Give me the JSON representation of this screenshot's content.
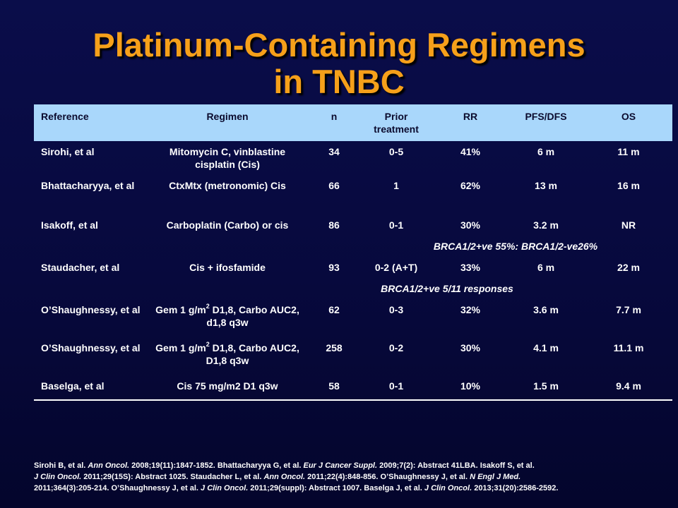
{
  "title": {
    "line1": "Platinum-Containing Regimens",
    "line2": "in TNBC"
  },
  "table": {
    "headers": {
      "reference": "Reference",
      "regimen": "Regimen",
      "n": "n",
      "prior": "Prior treatment",
      "rr": "RR",
      "pfs": "PFS/DFS",
      "os": "OS"
    },
    "rows": [
      {
        "reference": "Sirohi, et al",
        "regimen": "Mitomycin C, vinblastine cisplatin (Cis)",
        "n": "34",
        "prior": "0-5",
        "rr": "41%",
        "pfs": "6 m",
        "os": "11 m"
      },
      {
        "reference": "Bhattacharyya, et al",
        "regimen": "CtxMtx (metronomic) Cis",
        "n": "66",
        "prior": "1",
        "rr": "62%",
        "pfs": "13 m",
        "os": "16 m"
      },
      {
        "reference": "Isakoff, et al",
        "regimen": "Carboplatin  (Carbo) or cis",
        "n": "86",
        "prior": "0-1",
        "rr": "30%",
        "pfs": "3.2 m",
        "os": "NR",
        "note": "BRCA1/2+ve 55%: BRCA1/2-ve26%"
      },
      {
        "reference": "Staudacher, et al",
        "regimen": "Cis + ifosfamide",
        "n": "93",
        "prior": "0-2 (A+T)",
        "rr": "33%",
        "pfs": "6 m",
        "os": "22 m",
        "note": "BRCA1/2+ve 5/11 responses"
      },
      {
        "reference": "O’Shaughnessy, et al",
        "regimen_a": "Gem 1 g/m",
        "regimen_sup": "2",
        "regimen_b": " D1,8, Carbo AUC2, d1,8 q3w",
        "n": "62",
        "prior": "0-3",
        "rr": "32%",
        "pfs": "3.6 m",
        "os": "7.7 m"
      },
      {
        "reference": "O’Shaughnessy, et al",
        "regimen_a": "Gem 1 g/m",
        "regimen_sup": "2",
        "regimen_b": " D1,8, Carbo AUC2, D1,8 q3w",
        "n": "258",
        "prior": "0-2",
        "rr": "30%",
        "pfs": "4.1 m",
        "os": "11.1 m"
      },
      {
        "reference": "Baselga, et al",
        "regimen": "Cis 75 mg/m2 D1 q3w",
        "n": "58",
        "prior": "0-1",
        "rr": "10%",
        "pfs": "1.5 m",
        "os": "9.4 m"
      }
    ]
  },
  "footer": {
    "s1": "Sirohi B, et al. ",
    "j1": "Ann Oncol.",
    "s2": " 2008;19(11):1847-1852.  Bhattacharyya G, et al. ",
    "j2": "Eur J Cancer Suppl.",
    "s3": " 2009;7(2):  Abstract   41LBA.  Isakoff  S, et al.",
    "j3": "J Clin Oncol.",
    "s4": " 2011;29(15S):  Abstract  1025. Staudacher L, et al. ",
    "j4": "Ann Oncol.",
    "s5": " 2011;22(4):848-856.  O’Shaughnessy  J, et al. ",
    "j5": "N Engl J Med.",
    "s6": "2011;364(3):205-214.  O’Shaughnessy J, et al. ",
    "j6": "J Clin Oncol.",
    "s7": " 2011;29(suppl):  Abstract  1007. Baselga J, et al. ",
    "j7": "J Clin Oncol.",
    "s8": " 2013;31(20):2586-2592."
  }
}
